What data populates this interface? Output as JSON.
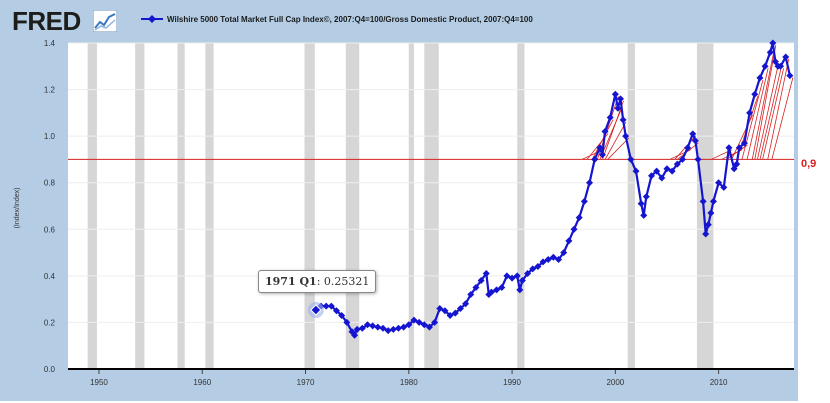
{
  "logo": {
    "text": "FRED"
  },
  "legend": {
    "label": "Wilshire 5000 Total Market Full Cap Index©, 2007:Q4=100/Gross Domestic Product, 2007:Q4=100"
  },
  "tooltip": {
    "period": "1971 Q1",
    "value": "0.25321"
  },
  "reference_line": {
    "label": "0,9",
    "value": 0.9,
    "color": "#d62020"
  },
  "colors": {
    "series": "#1515d0",
    "recession": "#d6d6d6",
    "frame": "#b4cde5"
  },
  "chart_data": {
    "type": "line",
    "title": "",
    "xlabel": "",
    "ylabel": "(Index/Index)",
    "xlim": [
      1947,
      2017.3
    ],
    "ylim": [
      0,
      1.4
    ],
    "x_ticks": [
      "1950",
      "1960",
      "1970",
      "1980",
      "1990",
      "2000",
      "2010"
    ],
    "y_ticks": [
      "0.0",
      "0.2",
      "0.4",
      "0.6",
      "0.8",
      "1.0",
      "1.2",
      "1.4"
    ],
    "recessions": [
      [
        1948.9,
        1949.8
      ],
      [
        1953.5,
        1954.4
      ],
      [
        1957.6,
        1958.3
      ],
      [
        1960.3,
        1961.1
      ],
      [
        1969.9,
        1970.9
      ],
      [
        1973.9,
        1975.2
      ],
      [
        1980.0,
        1980.5
      ],
      [
        1981.5,
        1982.9
      ],
      [
        1990.5,
        1991.2
      ],
      [
        2001.2,
        2001.9
      ],
      [
        2007.9,
        2009.5
      ]
    ],
    "series": [
      {
        "name": "Wilshire 5000 Total Market Full Cap Index©, 2007:Q4=100/Gross Domestic Product, 2007:Q4=100",
        "x": [
          1971.0,
          1971.5,
          1972.0,
          1972.5,
          1973.0,
          1973.5,
          1974.0,
          1974.5,
          1974.75,
          1975.0,
          1975.5,
          1976.0,
          1976.5,
          1977.0,
          1977.5,
          1978.0,
          1978.5,
          1979.0,
          1979.5,
          1980.0,
          1980.5,
          1981.0,
          1981.5,
          1982.0,
          1982.5,
          1983.0,
          1983.5,
          1984.0,
          1984.5,
          1985.0,
          1985.5,
          1986.0,
          1986.5,
          1987.0,
          1987.5,
          1987.75,
          1988.0,
          1988.5,
          1989.0,
          1989.5,
          1990.0,
          1990.5,
          1990.75,
          1991.0,
          1991.5,
          1992.0,
          1992.5,
          1993.0,
          1993.5,
          1994.0,
          1994.5,
          1995.0,
          1995.5,
          1996.0,
          1996.5,
          1997.0,
          1997.5,
          1998.0,
          1998.5,
          1998.75,
          1999.0,
          1999.5,
          2000.0,
          2000.25,
          2000.5,
          2000.75,
          2001.0,
          2001.5,
          2002.0,
          2002.5,
          2002.75,
          2003.0,
          2003.5,
          2004.0,
          2004.5,
          2005.0,
          2005.5,
          2006.0,
          2006.5,
          2007.0,
          2007.5,
          2007.75,
          2008.0,
          2008.5,
          2008.75,
          2009.0,
          2009.25,
          2009.5,
          2010.0,
          2010.5,
          2011.0,
          2011.5,
          2011.75,
          2012.0,
          2012.5,
          2013.0,
          2013.5,
          2014.0,
          2014.5,
          2015.0,
          2015.25,
          2015.5,
          2015.75,
          2016.0,
          2016.5,
          2016.9
        ],
        "values": [
          0.25321,
          0.27,
          0.27,
          0.27,
          0.25,
          0.23,
          0.2,
          0.16,
          0.145,
          0.17,
          0.175,
          0.19,
          0.185,
          0.18,
          0.175,
          0.165,
          0.17,
          0.175,
          0.18,
          0.19,
          0.21,
          0.2,
          0.19,
          0.18,
          0.2,
          0.26,
          0.25,
          0.23,
          0.24,
          0.26,
          0.28,
          0.32,
          0.35,
          0.38,
          0.41,
          0.32,
          0.33,
          0.34,
          0.35,
          0.4,
          0.39,
          0.4,
          0.34,
          0.38,
          0.41,
          0.43,
          0.44,
          0.46,
          0.47,
          0.48,
          0.47,
          0.5,
          0.55,
          0.6,
          0.65,
          0.72,
          0.8,
          0.9,
          0.95,
          0.92,
          1.02,
          1.08,
          1.18,
          1.12,
          1.16,
          1.07,
          1.0,
          0.9,
          0.85,
          0.71,
          0.66,
          0.74,
          0.83,
          0.85,
          0.82,
          0.86,
          0.85,
          0.88,
          0.9,
          0.95,
          1.01,
          0.98,
          0.9,
          0.72,
          0.58,
          0.62,
          0.67,
          0.72,
          0.8,
          0.78,
          0.95,
          0.86,
          0.88,
          0.95,
          0.97,
          1.1,
          1.18,
          1.25,
          1.3,
          1.36,
          1.4,
          1.32,
          1.3,
          1.3,
          1.34,
          1.26
        ]
      }
    ]
  }
}
